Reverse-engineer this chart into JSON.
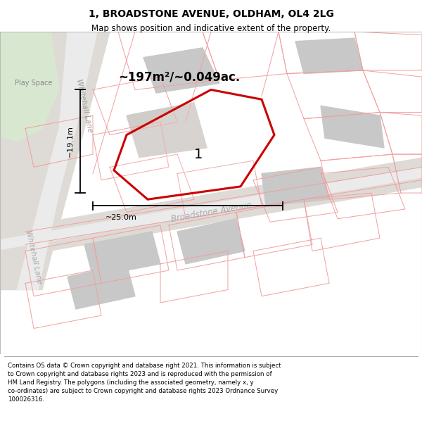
{
  "title": "1, BROADSTONE AVENUE, OLDHAM, OL4 2LG",
  "subtitle": "Map shows position and indicative extent of the property.",
  "footer": "Contains OS data © Crown copyright and database right 2021. This information is subject\nto Crown copyright and database rights 2023 and is reproduced with the permission of\nHM Land Registry. The polygons (including the associated geometry, namely x, y\nco-ordinates) are subject to Crown copyright and database rights 2023 Ordnance Survey\n100026316.",
  "map_bg": "#f2f0ed",
  "road_color": "#e8e4df",
  "property_outline_color": "#f0a0a0",
  "highlight_color": "#cc0000",
  "green_area_color": "#d8e8d0",
  "gray_block_color": "#c8c8c8",
  "gray_block_color2": "#d0ccc8",
  "area_text": "~197m²/~0.049ac.",
  "dim_h": "~25.0m",
  "dim_v": "~19.1m",
  "label_num": "1",
  "play_space_label": "Play Space",
  "road1_label": "Whitehall Lane",
  "road2_label": "Broadstone Avenue",
  "road2_label_bottom": "Whitehall Lane",
  "figsize": [
    6.0,
    6.25
  ],
  "dpi": 100,
  "title_fontsize": 10,
  "subtitle_fontsize": 8.5,
  "footer_fontsize": 6.2,
  "area_fontsize": 12,
  "dim_fontsize": 8,
  "num_fontsize": 14
}
